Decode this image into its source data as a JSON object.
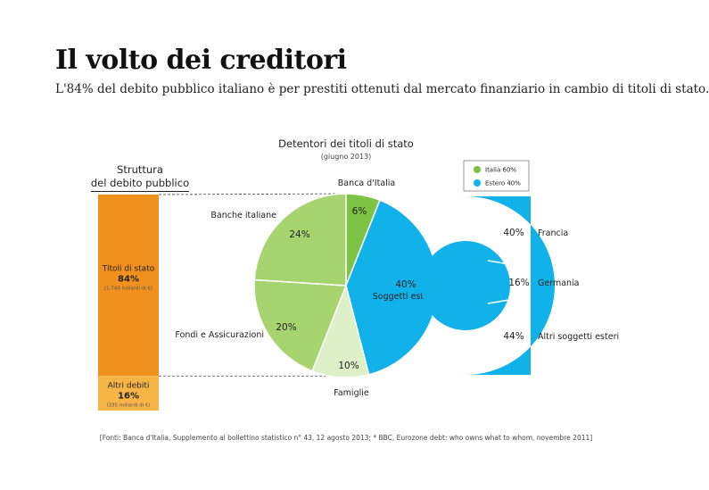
{
  "header": {
    "title": "Il volto dei creditori",
    "subtitle": "L'84% del debito pubblico italiano è per prestiti ottenuti dal mercato finanziario in cambio di titoli di stato."
  },
  "footer": {
    "source": "[Fonti: Banca d'Italia, Supplemento al bollettino statistico n° 43, 12 agosto 2013; * BBC, Eurozone debt: who owns what to whom, novembre 2011]"
  },
  "colors": {
    "orange": "#f0901f",
    "orange_light": "#f7b548",
    "green": "#a8d470",
    "green_bright": "#7dc243",
    "green_pale": "#def0c8",
    "blue": "#11b2ea"
  },
  "chart_data": [
    {
      "type": "bar",
      "title": "Struttura del debito pubblico",
      "title_lines": [
        "Struttura",
        "del debito pubblico"
      ],
      "stacked": true,
      "segments": [
        {
          "label": "Titoli di stato",
          "value": 84,
          "value_label": "84%",
          "note": "(1.740 miliardi di €)",
          "color": "#f0901f"
        },
        {
          "label": "Altri debiti",
          "value": 16,
          "value_label": "16%",
          "note": "(335 miliardi di €)",
          "color": "#f7b548"
        }
      ]
    },
    {
      "type": "pie",
      "title": "Detentori dei titoli di stato",
      "subtitle": "(giugno 2013)",
      "slices": [
        {
          "label": "Banca d'Italia",
          "value": 6,
          "value_label": "6%",
          "color": "#7dc243",
          "group": "Italia"
        },
        {
          "label": "Soggetti esteri*",
          "value": 40,
          "value_label": "40%",
          "color": "#11b2ea",
          "group": "Estero"
        },
        {
          "label": "Famiglie",
          "value": 10,
          "value_label": "10%",
          "color": "#def0c8",
          "group": "Italia"
        },
        {
          "label": "Fondi e Assicurazioni",
          "value": 20,
          "value_label": "20%",
          "color": "#a8d470",
          "group": "Italia"
        },
        {
          "label": "Banche italiane",
          "value": 24,
          "value_label": "24%",
          "color": "#a8d470",
          "group": "Italia"
        }
      ],
      "legend": [
        {
          "label": "Italia 60%",
          "color": "#7dc243"
        },
        {
          "label": "Estero 40%",
          "color": "#11b2ea"
        }
      ],
      "legend_position": "top-right"
    },
    {
      "type": "pie",
      "title": "",
      "segments": [
        {
          "label": "Francia",
          "value": 40,
          "value_label": "40%",
          "color": "#11b2ea"
        },
        {
          "label": "Germania",
          "value": 16,
          "value_label": "16%",
          "color": "#11b2ea"
        },
        {
          "label": "Altri soggetti esteri",
          "value": 44,
          "value_label": "44%",
          "color": "#11b2ea"
        }
      ]
    }
  ]
}
